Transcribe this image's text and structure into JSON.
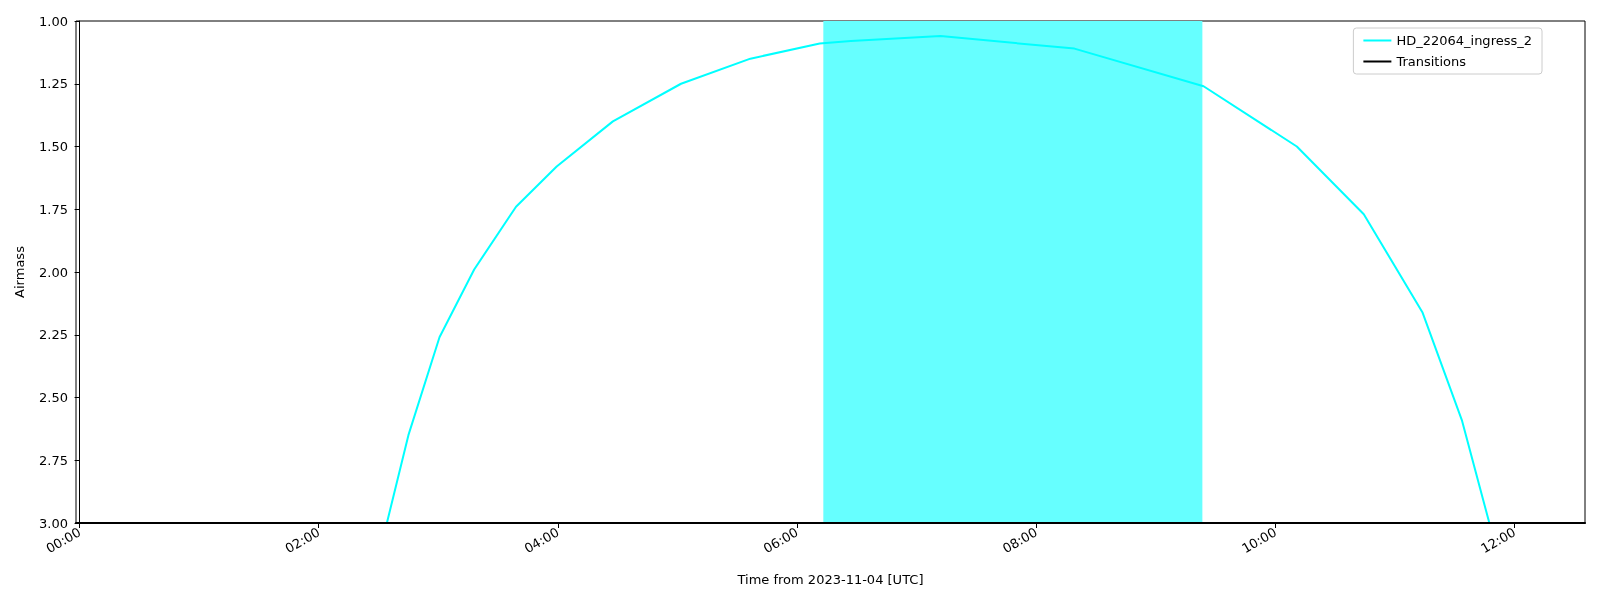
{
  "chart_data": {
    "type": "line",
    "xlabel": "Time from 2023-11-04 [UTC]",
    "ylabel": "Airmass",
    "xlim": [
      -0.03,
      12.59
    ],
    "ylim": [
      3,
      1
    ],
    "xticks": [
      {
        "value": 0,
        "label": "00:00"
      },
      {
        "value": 2,
        "label": "02:00"
      },
      {
        "value": 4,
        "label": "04:00"
      },
      {
        "value": 6,
        "label": "06:00"
      },
      {
        "value": 8,
        "label": "08:00"
      },
      {
        "value": 10,
        "label": "10:00"
      },
      {
        "value": 12,
        "label": "12:00"
      }
    ],
    "yticks": [
      {
        "value": 1,
        "label": "1.00"
      },
      {
        "value": 1.25,
        "label": "1.25"
      },
      {
        "value": 1.5,
        "label": "1.50"
      },
      {
        "value": 1.75,
        "label": "1.75"
      },
      {
        "value": 2,
        "label": "2.00"
      },
      {
        "value": 2.25,
        "label": "2.25"
      },
      {
        "value": 2.5,
        "label": "2.50"
      },
      {
        "value": 2.75,
        "label": "2.75"
      },
      {
        "value": 3,
        "label": "3.00"
      }
    ],
    "series": [
      {
        "name": "HD_22064_ingress_2",
        "color": "#00ffff",
        "x": [
          2.57,
          2.75,
          3.01,
          3.3,
          3.65,
          3.99,
          4.46,
          5.03,
          5.61,
          6.19,
          6.45,
          7.2,
          8.32,
          9.4,
          10.18,
          10.74,
          11.23,
          11.56,
          11.79
        ],
        "values": [
          3.0,
          2.65,
          2.26,
          1.99,
          1.74,
          1.58,
          1.4,
          1.25,
          1.15,
          1.09,
          1.08,
          1.06,
          1.11,
          1.26,
          1.5,
          1.77,
          2.16,
          2.59,
          3.0
        ]
      },
      {
        "name": "Transitions",
        "color": "#000000",
        "x": [
          -0.03,
          12.59
        ],
        "values": [
          3,
          3
        ]
      }
    ],
    "bands": [
      {
        "axis": "x",
        "from": 6.22,
        "to": 9.39,
        "color": "#66ffff"
      }
    ],
    "legend": "top right",
    "grid": false,
    "marker": "none",
    "line_style": "solid"
  }
}
